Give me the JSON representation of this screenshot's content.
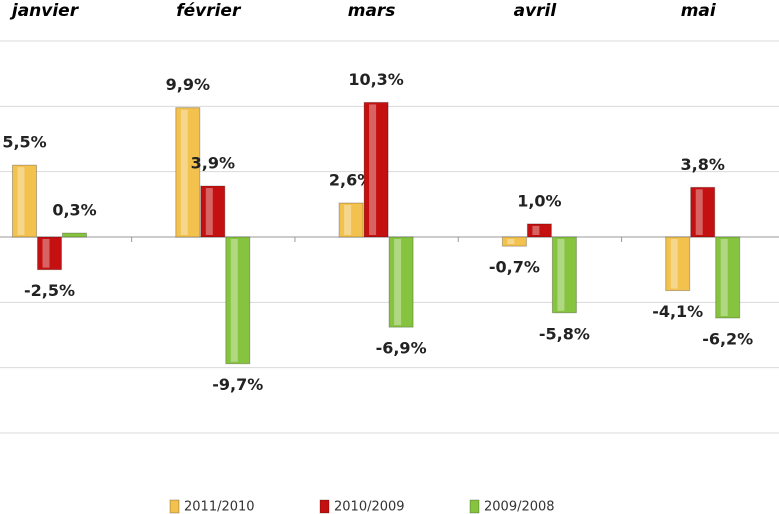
{
  "chart_data": {
    "type": "bar",
    "categories": [
      "janvier",
      "février",
      "mars",
      "avril",
      "mai"
    ],
    "series": [
      {
        "name": "2011/2010",
        "color": "#f2c14e",
        "values": [
          5.5,
          9.9,
          2.6,
          -0.7,
          -4.1
        ],
        "value_labels": [
          "5,5%",
          "9,9%",
          "2,6%",
          "-0,7%",
          "-4,1%"
        ]
      },
      {
        "name": "2010/2009",
        "color": "#c41010",
        "values": [
          -2.5,
          3.9,
          10.3,
          1.0,
          3.8
        ],
        "value_labels": [
          "-2,5%",
          "3,9%",
          "10,3%",
          "1,0%",
          "3,8%"
        ]
      },
      {
        "name": "2009/2008",
        "color": "#86c440",
        "values": [
          0.3,
          -9.7,
          -6.9,
          -5.8,
          -6.2
        ],
        "value_labels": [
          "0,3%",
          "-9,7%",
          "-6,9%",
          "-5,8%",
          "-6,2%"
        ]
      }
    ],
    "ylim": [
      -15,
      15
    ],
    "yticks": [
      -15,
      -10,
      -5,
      0,
      5,
      10,
      15
    ],
    "grid": true,
    "legend": "bottom"
  }
}
